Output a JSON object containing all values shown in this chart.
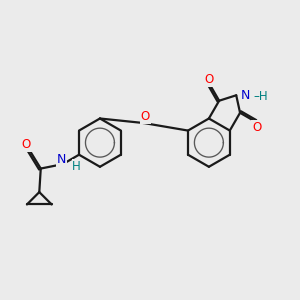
{
  "background_color": "#ebebeb",
  "bond_color": "#1a1a1a",
  "bond_width": 1.6,
  "atom_colors": {
    "O": "#ff0000",
    "N": "#0000cc",
    "H_on_N": "#008080",
    "C": "#1a1a1a"
  },
  "font_size_atom": 8.5,
  "fig_size": [
    3.0,
    3.0
  ],
  "dpi": 100
}
